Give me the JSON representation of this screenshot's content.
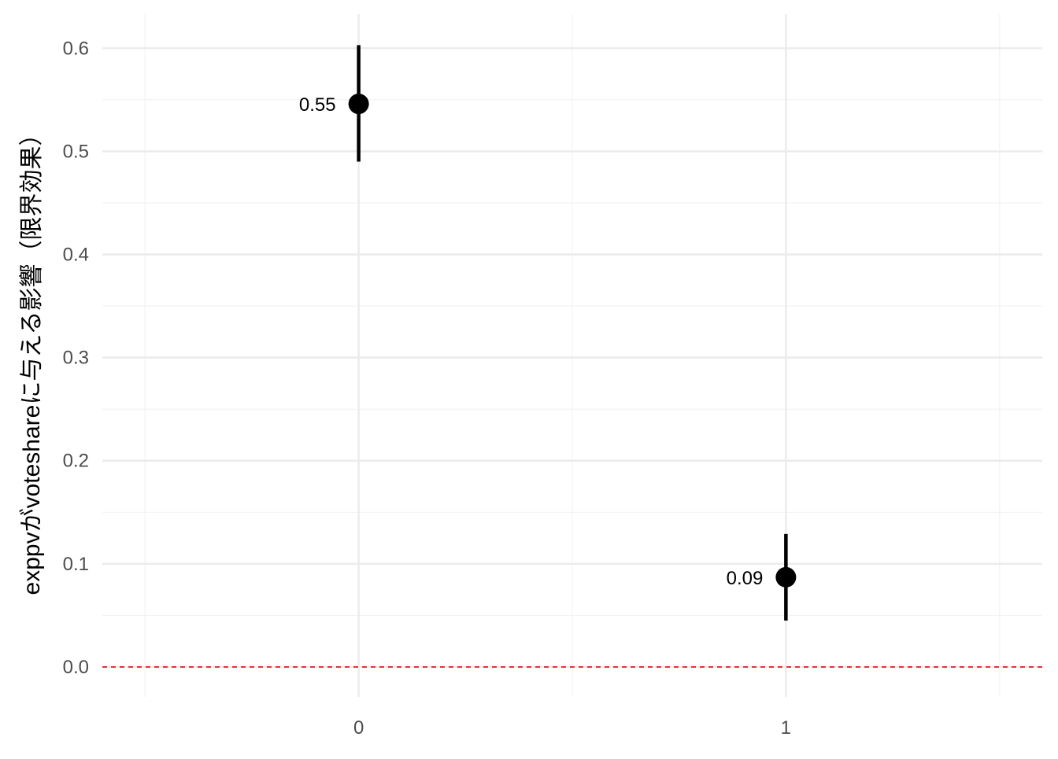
{
  "chart_data": {
    "type": "scatter",
    "subtype": "point-range",
    "title": "",
    "xlabel": "",
    "ylabel": "exppvがvoteshareに与える影響（限界効果）",
    "categories": [
      "0",
      "1"
    ],
    "points": [
      {
        "x": "0",
        "estimate": 0.546,
        "lower": 0.49,
        "upper": 0.603,
        "label": "0.55"
      },
      {
        "x": "1",
        "estimate": 0.087,
        "lower": 0.045,
        "upper": 0.129,
        "label": "0.09"
      }
    ],
    "y_ticks": [
      0.0,
      0.1,
      0.2,
      0.3,
      0.4,
      0.5,
      0.6
    ],
    "y_tick_labels": [
      "0.0",
      "0.1",
      "0.2",
      "0.3",
      "0.4",
      "0.5",
      "0.6"
    ],
    "ylim": [
      -0.029,
      0.633
    ],
    "reference_line": {
      "y": 0,
      "style": "dashed",
      "color": "#e41a1c"
    },
    "grid": true,
    "legend": "none",
    "colors": {
      "points": "#000000",
      "grid": "#ebebeb",
      "tick_text": "#4d4d4d"
    }
  }
}
